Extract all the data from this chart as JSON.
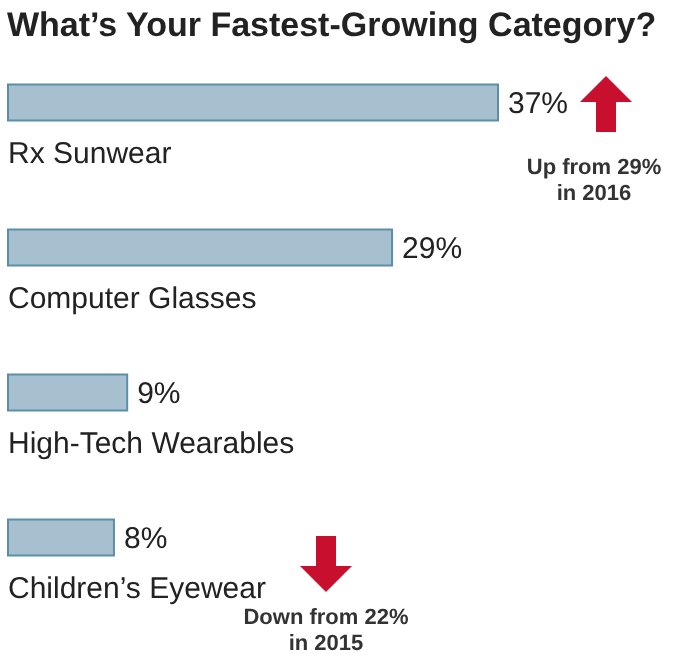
{
  "chart_data": {
    "type": "bar",
    "orientation": "horizontal",
    "title": "What’s Your Fastest-Growing Category?",
    "categories": [
      "Rx Sunwear",
      "Computer Glasses",
      "High-Tech Wearables",
      "Children’s Eyewear"
    ],
    "values": [
      37,
      29,
      9,
      8
    ],
    "value_labels": [
      "37%",
      "29%",
      "9%",
      "8%"
    ],
    "color": "#a7c0d0",
    "annotations": [
      "Up from 29% in 2016",
      "Down from 22% in 2015"
    ]
  }
}
